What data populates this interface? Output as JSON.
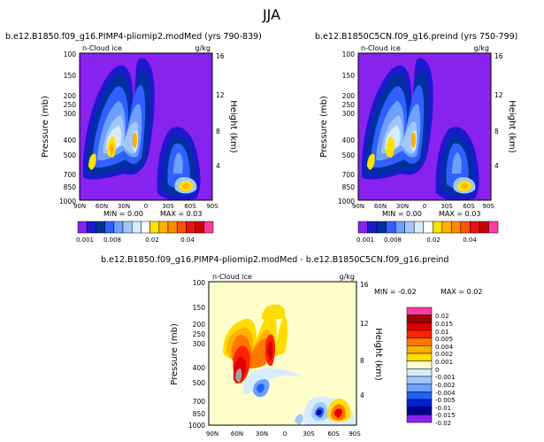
{
  "page_title": "JJA",
  "colors": {
    "bg_purple": "#8822ee",
    "bg_cream": "#ffffcc",
    "field_palette": [
      "#8822ee",
      "#1a1acc",
      "#0030a0",
      "#3060ff",
      "#6ea0ff",
      "#a0c8ff",
      "#d8ecff",
      "#ffffff",
      "#ffe100",
      "#ffb000",
      "#ff8a00",
      "#ff5400",
      "#ee1010",
      "#cc0000",
      "#ff3aa0"
    ],
    "diff_palette": [
      "#ff3aa0",
      "#a00000",
      "#dd0000",
      "#ff2200",
      "#ff7700",
      "#ffb000",
      "#ffdd00",
      "#ffffcc",
      "#d8ecff",
      "#a0c8ff",
      "#6ea0ff",
      "#2060ff",
      "#0020d0",
      "#000090",
      "#8822ee"
    ]
  },
  "chart_data": [
    {
      "type": "contour",
      "title": "b.e12.B1850.f09_g16.PIMP4-pliomip2.modMed (yrs 790-839)",
      "field_label": "n-Cloud ice",
      "units": "g/kg",
      "ylabel": "Pressure (mb)",
      "y2label": "Height (km)",
      "xticks": [
        "90N",
        "60N",
        "30N",
        "0",
        "30S",
        "60S",
        "90S"
      ],
      "yticks": [
        "100",
        "150",
        "200",
        "250",
        "300",
        "400",
        "500",
        "700",
        "850",
        "1000"
      ],
      "y2ticks": [
        "16",
        "12",
        "8",
        "4"
      ],
      "min_text": "MIN =   0.00",
      "max_text": "MAX =  0.03",
      "min": 0.0,
      "max": 0.03,
      "colorbar_labels": [
        "0.001",
        "0.008",
        "0.02",
        "0.04"
      ]
    },
    {
      "type": "contour",
      "title": "b.e12.B1850C5CN.f09_g16.preind (yrs 750-799)",
      "field_label": "n-Cloud ice",
      "units": "g/kg",
      "ylabel": "Pressure (mb)",
      "y2label": "Height (km)",
      "xticks": [
        "90N",
        "60N",
        "30N",
        "0",
        "30S",
        "60S",
        "90S"
      ],
      "yticks": [
        "100",
        "150",
        "200",
        "250",
        "300",
        "400",
        "500",
        "700",
        "850",
        "1000"
      ],
      "y2ticks": [
        "16",
        "12",
        "8",
        "4"
      ],
      "min_text": "MIN =   0.00",
      "max_text": "MAX =  0.03",
      "min": 0.0,
      "max": 0.03,
      "colorbar_labels": [
        "0.001",
        "0.008",
        "0.02",
        "0.04"
      ]
    },
    {
      "type": "contour",
      "title": "b.e12.B1850.f09_g16.PIMP4-pliomip2.modMed - b.e12.B1850C5CN.f09_g16.preind",
      "field_label": "n-Cloud ice",
      "units": "g/kg",
      "ylabel": "Pressure (mb)",
      "y2label": "Height (km)",
      "xticks": [
        "90N",
        "60N",
        "30N",
        "0",
        "30S",
        "60S",
        "90S"
      ],
      "yticks": [
        "100",
        "150",
        "200",
        "250",
        "300",
        "400",
        "500",
        "700",
        "850",
        "1000"
      ],
      "y2ticks": [
        "16",
        "12",
        "8",
        "4"
      ],
      "min_text": "MIN =   -0.02",
      "max_text": "MAX =   0.02",
      "min": -0.02,
      "max": 0.02,
      "colorbar_labels": [
        "0.02",
        "0.015",
        "0.01",
        "0.005",
        "0.004",
        "0.002",
        "0.001",
        "0",
        "-0.001",
        "-0.002",
        "-0.004",
        "-0.005",
        "-0.01",
        "-0.015",
        "-0.02"
      ]
    }
  ]
}
